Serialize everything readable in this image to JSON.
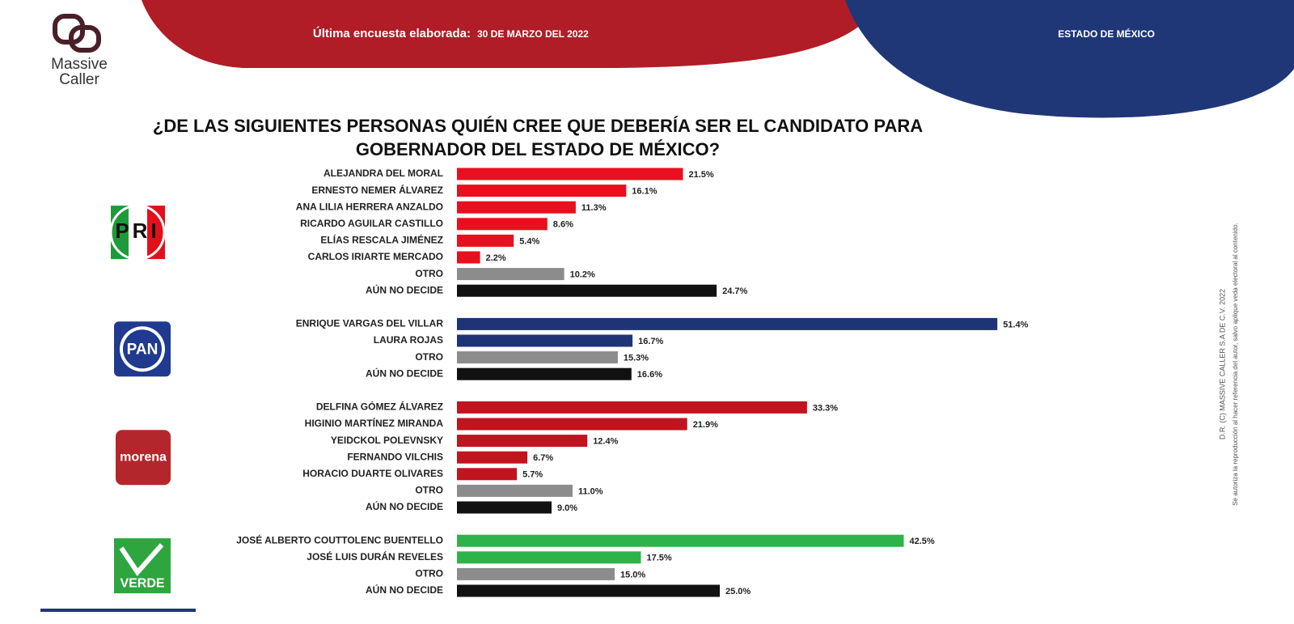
{
  "header": {
    "brand": [
      "Massive",
      "Caller"
    ],
    "survey_label": "Última encuesta elaborada:",
    "date": "30 DE MARZO DEL 2022",
    "region": "ESTADO DE MÉXICO"
  },
  "footer": {
    "copyright": "D.R. (C) MASSIVE CALLER S.A DE C.V. 2022",
    "disclaimer": "Se autoriza la reproducción al hacer referencia del autor, salvo aplique veda electoral al contenido."
  },
  "chart_data": {
    "type": "bar",
    "orientation": "horizontal",
    "title": [
      "¿DE LAS SIGUIENTES PERSONAS QUIÉN CREE QUE DEBERÍA SER EL CANDIDATO PARA",
      "GOBERNADOR DEL ESTADO DE MÉXICO?"
    ],
    "xlim": [
      0,
      60
    ],
    "groups": [
      {
        "party": "PRI",
        "categories": [
          "ALEJANDRA DEL MORAL",
          "ERNESTO NEMER ÁLVAREZ",
          "ANA LILIA HERRERA ANZALDO",
          "RICARDO AGUILAR CASTILLO",
          "ELÍAS RESCALA JIMÉNEZ",
          "CARLOS IRIARTE MERCADO",
          "OTRO",
          "AÚN NO DECIDE"
        ],
        "values": [
          21.5,
          16.1,
          11.3,
          8.6,
          5.4,
          2.2,
          10.2,
          24.7
        ],
        "value_labels": [
          "21.5%",
          "16.1%",
          "11.3%",
          "8.6%",
          "5.4%",
          "2.2%",
          "10.2%",
          "24.7%"
        ],
        "colors": [
          "#e8101e",
          "#e8101e",
          "#e8101e",
          "#e8101e",
          "#e8101e",
          "#e8101e",
          "#8c8c8c",
          "#111111"
        ]
      },
      {
        "party": "PAN",
        "categories": [
          "ENRIQUE VARGAS DEL VILLAR",
          "LAURA ROJAS",
          "OTRO",
          "AÚN NO DECIDE"
        ],
        "values": [
          51.4,
          16.7,
          15.3,
          16.6
        ],
        "value_labels": [
          "51.4%",
          "16.7%",
          "15.3%",
          "16.6%"
        ],
        "colors": [
          "#1f3377",
          "#1f3377",
          "#8c8c8c",
          "#111111"
        ]
      },
      {
        "party": "morena",
        "categories": [
          "DELFINA GÓMEZ ÁLVAREZ",
          "HIGINIO MARTÍNEZ MIRANDA",
          "YEIDCKOL POLEVNSKY",
          "FERNANDO VILCHIS",
          "HORACIO DUARTE OLIVARES",
          "OTRO",
          "AÚN NO DECIDE"
        ],
        "values": [
          33.3,
          21.9,
          12.4,
          6.7,
          5.7,
          11.0,
          9.0
        ],
        "value_labels": [
          "33.3%",
          "21.9%",
          "12.4%",
          "6.7%",
          "5.7%",
          "11.0%",
          "9.0%"
        ],
        "colors": [
          "#c0141f",
          "#c0141f",
          "#c0141f",
          "#c0141f",
          "#c0141f",
          "#8c8c8c",
          "#111111"
        ]
      },
      {
        "party": "VERDE",
        "categories": [
          "JOSÉ ALBERTO COUTTOLENC BUENTELLO",
          "JOSÉ LUIS DURÁN REVELES",
          "OTRO",
          "AÚN NO DECIDE"
        ],
        "values": [
          42.5,
          17.5,
          15.0,
          25.0
        ],
        "value_labels": [
          "42.5%",
          "17.5%",
          "15.0%",
          "25.0%"
        ],
        "colors": [
          "#2eb34a",
          "#2eb34a",
          "#8c8c8c",
          "#111111"
        ]
      }
    ]
  }
}
